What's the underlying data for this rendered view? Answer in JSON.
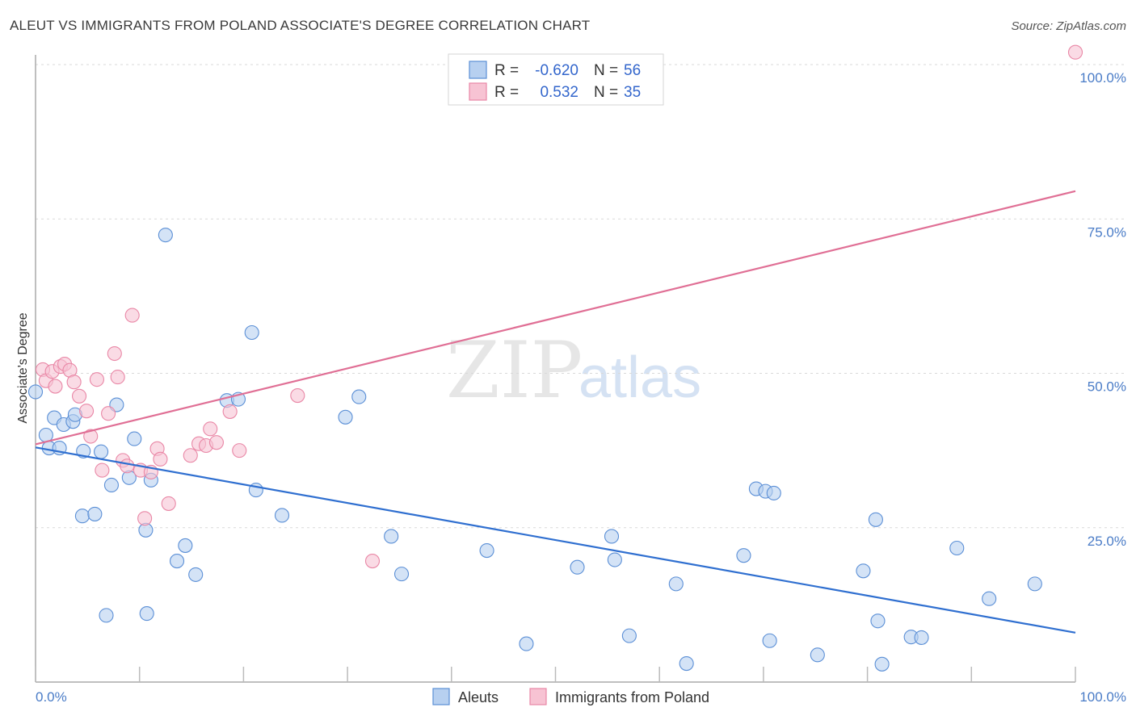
{
  "title": "ALEUT VS IMMIGRANTS FROM POLAND ASSOCIATE'S DEGREE CORRELATION CHART",
  "source": "Source: ZipAtlas.com",
  "watermark": {
    "zip": "ZIP",
    "atlas": "atlas"
  },
  "legend": {
    "rows": [
      {
        "r_label": "R =",
        "r_value": "-0.620",
        "n_label": "N =",
        "n_value": "56",
        "color": "#a8c8ee"
      },
      {
        "r_label": "R =",
        "r_value": "0.532",
        "n_label": "N =",
        "n_value": "35",
        "color": "#f4b8cb"
      }
    ]
  },
  "bottom_legend": [
    {
      "label": "Aleuts",
      "color": "#a8c8ee"
    },
    {
      "label": "Immigrants from Poland",
      "color": "#f4b8cb"
    }
  ],
  "chart_data": {
    "type": "scatter",
    "title": "ALEUT VS IMMIGRANTS FROM POLAND ASSOCIATE'S DEGREE CORRELATION CHART",
    "xlabel": "",
    "ylabel": "Associate's Degree",
    "xlim": [
      0,
      100
    ],
    "ylim": [
      0,
      100
    ],
    "x_tick_labels": [
      "0.0%",
      "100.0%"
    ],
    "y_tick_labels": [
      "25.0%",
      "50.0%",
      "75.0%",
      "100.0%"
    ],
    "y_ticks": [
      25,
      50,
      75,
      100
    ],
    "grid": true,
    "legend_placement": "top-center",
    "series": [
      {
        "name": "Aleuts",
        "color": "#5b8fd6",
        "fill": "#b7d0f0",
        "trend": {
          "x": [
            0,
            100
          ],
          "y": [
            38.0,
            8.0
          ],
          "color": "#2f6fd0"
        },
        "points": [
          [
            0.0,
            47.0
          ],
          [
            1.0,
            40.0
          ],
          [
            1.3,
            37.9
          ],
          [
            1.8,
            42.8
          ],
          [
            2.3,
            37.9
          ],
          [
            2.7,
            41.7
          ],
          [
            3.6,
            42.2
          ],
          [
            3.8,
            43.3
          ],
          [
            4.5,
            26.9
          ],
          [
            4.6,
            37.4
          ],
          [
            5.7,
            27.2
          ],
          [
            6.3,
            37.3
          ],
          [
            6.8,
            10.8
          ],
          [
            7.3,
            31.9
          ],
          [
            7.8,
            44.9
          ],
          [
            9.0,
            33.1
          ],
          [
            9.5,
            39.4
          ],
          [
            10.6,
            24.6
          ],
          [
            10.7,
            11.1
          ],
          [
            11.1,
            32.7
          ],
          [
            12.5,
            72.4
          ],
          [
            13.6,
            19.6
          ],
          [
            14.4,
            22.1
          ],
          [
            15.4,
            17.4
          ],
          [
            18.4,
            45.6
          ],
          [
            19.5,
            45.8
          ],
          [
            20.8,
            56.6
          ],
          [
            21.2,
            31.1
          ],
          [
            23.7,
            27.0
          ],
          [
            29.8,
            42.9
          ],
          [
            31.1,
            46.2
          ],
          [
            34.2,
            23.6
          ],
          [
            35.2,
            17.5
          ],
          [
            43.4,
            21.3
          ],
          [
            47.2,
            6.2
          ],
          [
            52.1,
            18.6
          ],
          [
            55.4,
            23.6
          ],
          [
            55.7,
            19.8
          ],
          [
            57.1,
            7.5
          ],
          [
            61.6,
            15.9
          ],
          [
            62.6,
            3.0
          ],
          [
            68.1,
            20.5
          ],
          [
            69.3,
            31.3
          ],
          [
            70.2,
            30.9
          ],
          [
            70.6,
            6.7
          ],
          [
            71.0,
            30.6
          ],
          [
            75.2,
            4.4
          ],
          [
            79.6,
            18.0
          ],
          [
            80.8,
            26.3
          ],
          [
            81.0,
            9.9
          ],
          [
            81.4,
            2.9
          ],
          [
            84.2,
            7.3
          ],
          [
            85.2,
            7.2
          ],
          [
            88.6,
            21.7
          ],
          [
            91.7,
            13.5
          ],
          [
            96.1,
            15.9
          ]
        ]
      },
      {
        "name": "Immigrants from Poland",
        "color": "#e987a6",
        "fill": "#f7c3d3",
        "trend": {
          "x": [
            0,
            100
          ],
          "y": [
            38.5,
            79.5
          ],
          "color": "#e06f95"
        },
        "points": [
          [
            0.7,
            50.6
          ],
          [
            1.0,
            48.8
          ],
          [
            1.6,
            50.3
          ],
          [
            1.9,
            47.9
          ],
          [
            2.4,
            51.1
          ],
          [
            2.8,
            51.5
          ],
          [
            3.3,
            50.5
          ],
          [
            3.7,
            48.6
          ],
          [
            4.2,
            46.3
          ],
          [
            4.9,
            43.9
          ],
          [
            5.3,
            39.8
          ],
          [
            5.9,
            49.0
          ],
          [
            6.4,
            34.3
          ],
          [
            7.0,
            43.5
          ],
          [
            7.6,
            53.2
          ],
          [
            7.9,
            49.4
          ],
          [
            8.4,
            35.9
          ],
          [
            8.8,
            35.0
          ],
          [
            9.3,
            59.4
          ],
          [
            10.1,
            34.3
          ],
          [
            10.5,
            26.5
          ],
          [
            11.1,
            34.0
          ],
          [
            11.7,
            37.8
          ],
          [
            12.0,
            36.1
          ],
          [
            12.8,
            28.9
          ],
          [
            14.9,
            36.7
          ],
          [
            15.7,
            38.6
          ],
          [
            16.4,
            38.3
          ],
          [
            16.8,
            41.0
          ],
          [
            17.4,
            38.8
          ],
          [
            18.7,
            43.8
          ],
          [
            19.6,
            37.5
          ],
          [
            25.2,
            46.4
          ],
          [
            32.4,
            19.6
          ],
          [
            100.0,
            102.0
          ]
        ]
      }
    ]
  }
}
